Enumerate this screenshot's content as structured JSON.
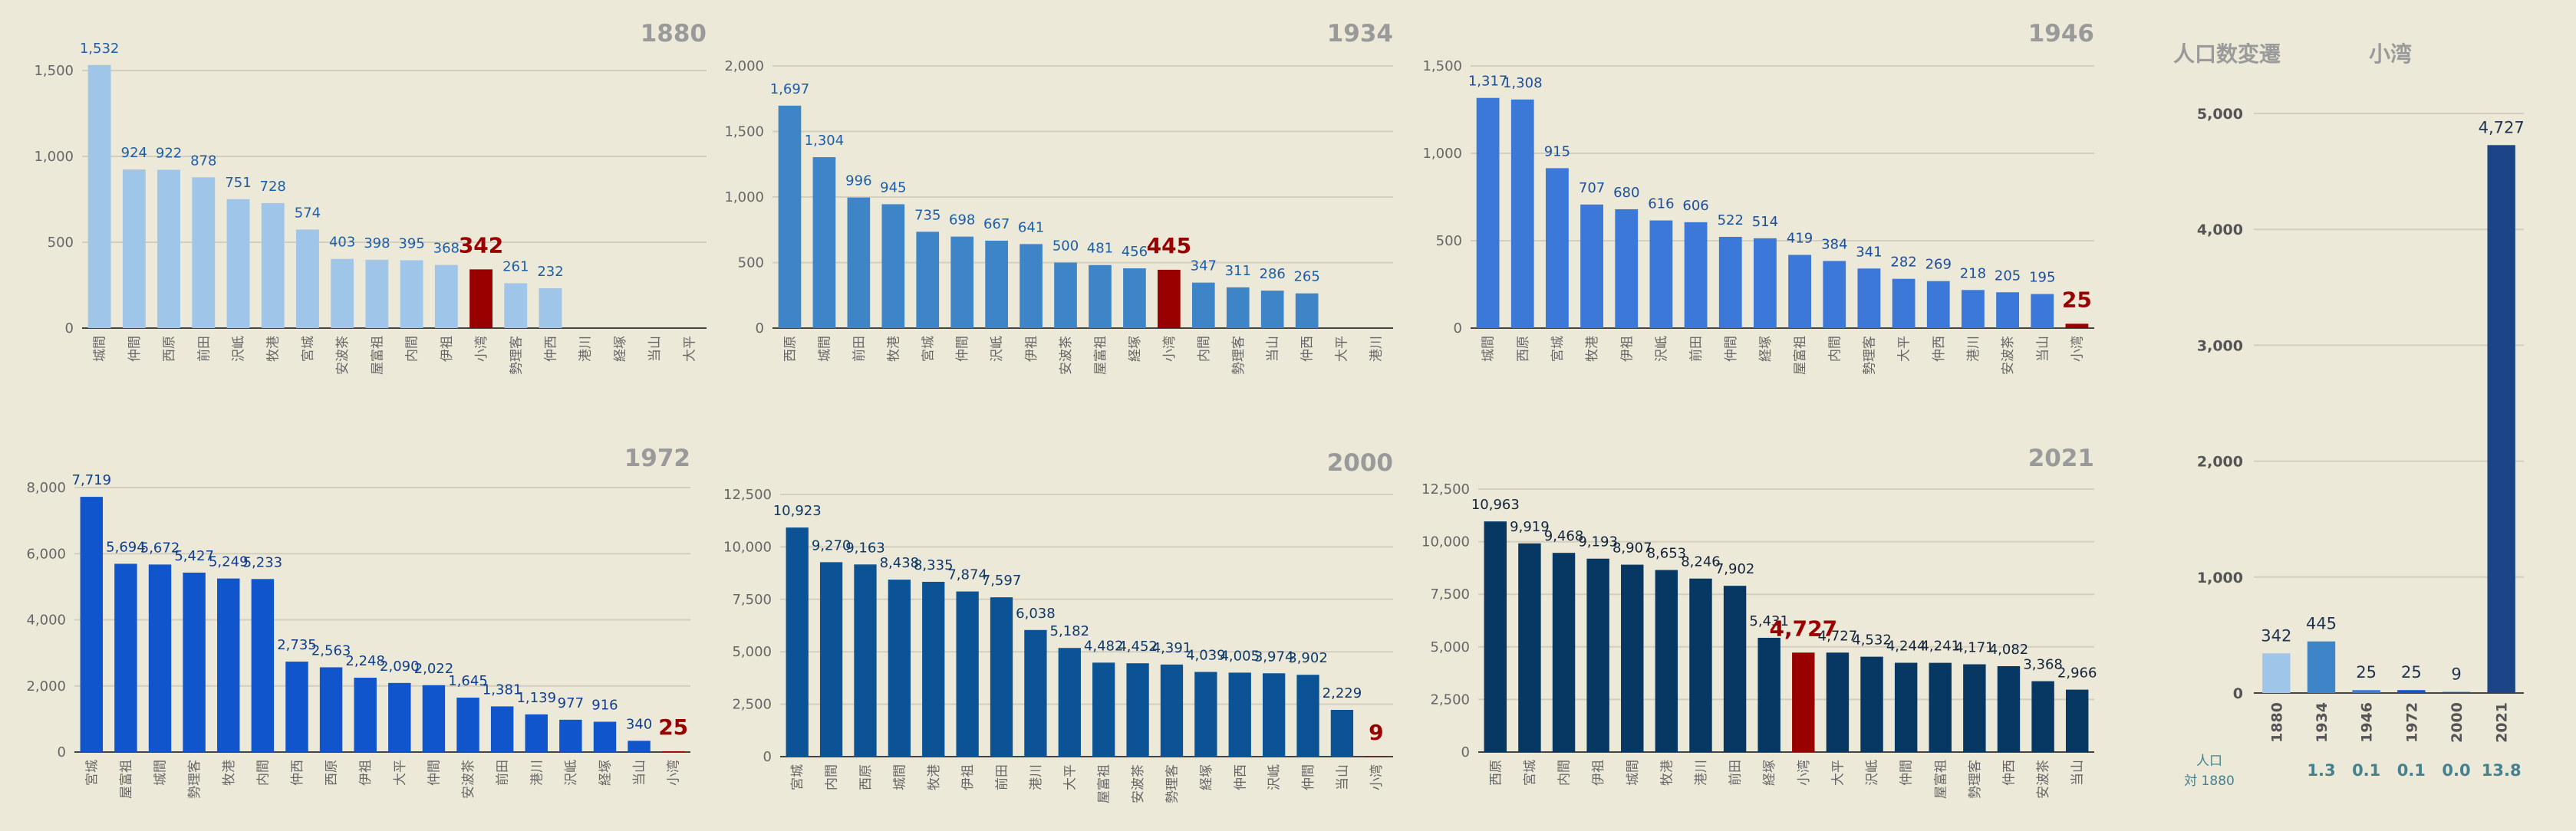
{
  "chart_data": [
    {
      "type": "bar",
      "title": "1880",
      "categories": [
        "城間",
        "仲間",
        "西原",
        "前田",
        "沢岻",
        "牧港",
        "宮城",
        "安波茶",
        "屋富祖",
        "内間",
        "伊祖",
        "小湾",
        "勢理客",
        "仲西",
        "港川",
        "経塚",
        "当山",
        "大平"
      ],
      "values": [
        1532,
        924,
        922,
        878,
        751,
        728,
        574,
        403,
        398,
        395,
        368,
        342,
        261,
        232,
        null,
        null,
        null,
        null
      ],
      "highlight": "小湾",
      "ylim": [
        0,
        1500
      ],
      "yticks": [
        0,
        500,
        1000,
        1500
      ],
      "grid": true,
      "color": "#9fc5e8",
      "highlight_color": "#990000"
    },
    {
      "type": "bar",
      "title": "1934",
      "categories": [
        "西原",
        "城間",
        "前田",
        "牧港",
        "宮城",
        "仲間",
        "沢岻",
        "伊祖",
        "安波茶",
        "屋富祖",
        "経塚",
        "小湾",
        "内間",
        "勢理客",
        "当山",
        "仲西",
        "大平",
        "港川"
      ],
      "values": [
        1697,
        1304,
        996,
        945,
        735,
        698,
        667,
        641,
        500,
        481,
        456,
        445,
        347,
        311,
        286,
        265,
        null,
        null
      ],
      "highlight": "小湾",
      "ylim": [
        0,
        2000
      ],
      "yticks": [
        0,
        500,
        1000,
        1500,
        2000
      ],
      "grid": true,
      "color": "#3d85c6",
      "highlight_color": "#990000"
    },
    {
      "type": "bar",
      "title": "1946",
      "categories": [
        "城間",
        "西原",
        "宮城",
        "牧港",
        "伊祖",
        "沢岻",
        "前田",
        "仲間",
        "経塚",
        "屋富祖",
        "内間",
        "勢理客",
        "大平",
        "仲西",
        "港川",
        "安波茶",
        "当山",
        "小湾"
      ],
      "values": [
        1317,
        1308,
        915,
        707,
        680,
        616,
        606,
        522,
        514,
        419,
        384,
        341,
        282,
        269,
        218,
        205,
        195,
        25
      ],
      "highlight": "小湾",
      "ylim": [
        0,
        1500
      ],
      "yticks": [
        0,
        500,
        1000,
        1500
      ],
      "grid": true,
      "color": "#3c78d8",
      "highlight_color": "#990000"
    },
    {
      "type": "bar",
      "title": "1972",
      "categories": [
        "宮城",
        "屋富祖",
        "城間",
        "勢理客",
        "牧港",
        "内間",
        "仲西",
        "西原",
        "伊祖",
        "大平",
        "仲間",
        "安波茶",
        "前田",
        "港川",
        "沢岻",
        "経塚",
        "当山",
        "小湾"
      ],
      "values": [
        7719,
        5694,
        5672,
        5427,
        5249,
        5233,
        2735,
        2563,
        2248,
        2090,
        2022,
        1645,
        1381,
        1139,
        977,
        916,
        340,
        25
      ],
      "highlight": "小湾",
      "ylim": [
        0,
        8000
      ],
      "yticks": [
        0,
        2000,
        4000,
        6000,
        8000
      ],
      "grid": true,
      "color": "#1155cc",
      "highlight_color": "#990000"
    },
    {
      "type": "bar",
      "title": "2000",
      "categories": [
        "宮城",
        "内間",
        "西原",
        "城間",
        "牧港",
        "伊祖",
        "前田",
        "港川",
        "大平",
        "屋富祖",
        "安波茶",
        "勢理客",
        "経塚",
        "仲西",
        "沢岻",
        "仲間",
        "当山",
        "小湾"
      ],
      "values": [
        10923,
        9270,
        9163,
        8438,
        8335,
        7874,
        7597,
        6038,
        5182,
        4482,
        4452,
        4391,
        4039,
        4005,
        3974,
        3902,
        2229,
        9
      ],
      "highlight": "小湾",
      "ylim": [
        0,
        12500
      ],
      "yticks": [
        0,
        2500,
        5000,
        7500,
        10000,
        12500
      ],
      "grid": true,
      "color": "#0b5394",
      "highlight_color": "#990000"
    },
    {
      "type": "bar",
      "title": "2021",
      "categories": [
        "西原",
        "宮城",
        "内間",
        "伊祖",
        "城間",
        "牧港",
        "港川",
        "前田",
        "経塚",
        "小湾",
        "大平",
        "沢岻",
        "仲間",
        "屋富祖",
        "勢理客",
        "仲西",
        "安波茶",
        "当山"
      ],
      "values": [
        10963,
        9919,
        9468,
        9193,
        8907,
        8653,
        8246,
        7902,
        5431,
        4727,
        4727,
        4532,
        4244,
        4241,
        4171,
        4082,
        3368,
        2966
      ],
      "highlight": "小湾",
      "ylim": [
        0,
        12500
      ],
      "yticks": [
        0,
        2500,
        5000,
        7500,
        10000,
        12500
      ],
      "grid": true,
      "color": "#073763",
      "highlight_color": "#990000"
    },
    {
      "type": "bar",
      "title": "人口数変遷",
      "subtitle": "小湾",
      "categories": [
        "1880",
        "1934",
        "1946",
        "1972",
        "2000",
        "2021"
      ],
      "values": [
        342,
        445,
        25,
        25,
        9,
        4727
      ],
      "ylim": [
        0,
        5000
      ],
      "yticks": [
        0,
        1000,
        2000,
        3000,
        4000,
        5000
      ],
      "grid": true,
      "colors": [
        "#9fc5e8",
        "#3d85c6",
        "#3c78d8",
        "#1155cc",
        "#0b5394",
        "#1c4587"
      ],
      "ratio_label": [
        "人口",
        "対 1880"
      ],
      "ratios": [
        null,
        "1.3",
        "0.1",
        "0.1",
        "0.0",
        "13.8"
      ]
    }
  ]
}
